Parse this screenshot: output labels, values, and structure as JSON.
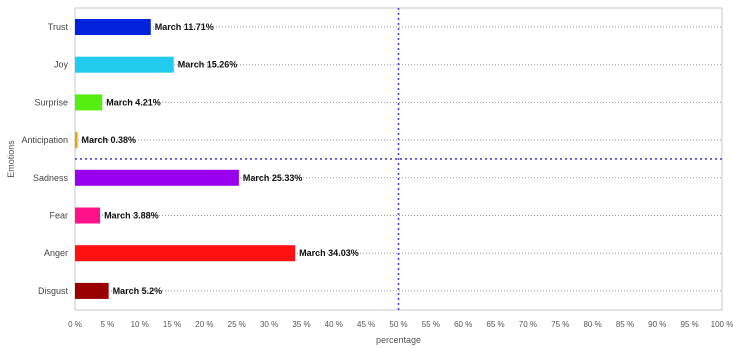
{
  "chart_data": {
    "type": "bar",
    "orientation": "horizontal",
    "categories": [
      "Trust",
      "Joy",
      "Surprise",
      "Anticipation",
      "Sadness",
      "Fear",
      "Anger",
      "Disgust"
    ],
    "series": [
      {
        "name": "March",
        "values": [
          11.71,
          15.26,
          4.21,
          0.38,
          25.33,
          3.88,
          34.03,
          5.2
        ],
        "data_labels": [
          "March 11.71%",
          "March 15.26%",
          "March 4.21%",
          "March 0.38%",
          "March 25.33%",
          "March 3.88%",
          "March 34.03%",
          "March 5.2%"
        ]
      }
    ],
    "colors": [
      "#0022dd",
      "#22ccee",
      "#55ee11",
      "#ff9900",
      "#9900ee",
      "#ff1188",
      "#ff1111",
      "#990000"
    ],
    "xlabel": "percentage",
    "ylabel": "Emotions",
    "xlim": [
      0,
      100
    ],
    "x_tick_labels": [
      "0 %",
      "5 %",
      "10 %",
      "15 %",
      "20 %",
      "25 %",
      "30 %",
      "35 %",
      "40 %",
      "45 %",
      "50 %",
      "55 %",
      "60 %",
      "65 %",
      "70 %",
      "75 %",
      "80 %",
      "85 %",
      "90 %",
      "95 %",
      "100 %"
    ],
    "grid": true,
    "reference_lines": {
      "vertical_at": 50,
      "horizontal_between": [
        "Anticipation",
        "Sadness"
      ],
      "color": "#4444dd"
    }
  }
}
